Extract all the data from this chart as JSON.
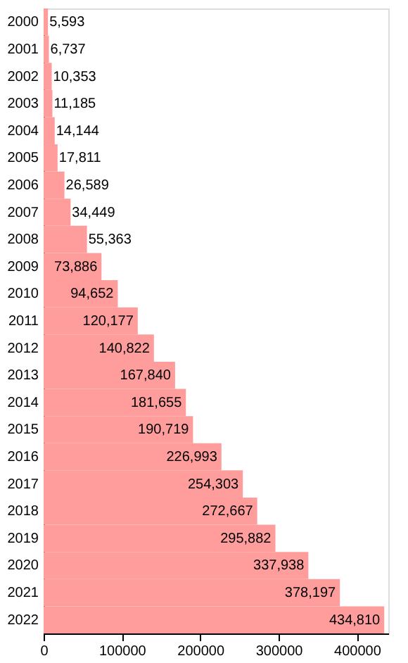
{
  "chart_data": {
    "type": "bar",
    "orientation": "horizontal",
    "categories": [
      "2000",
      "2001",
      "2002",
      "2003",
      "2004",
      "2005",
      "2006",
      "2007",
      "2008",
      "2009",
      "2010",
      "2011",
      "2012",
      "2013",
      "2014",
      "2015",
      "2016",
      "2017",
      "2018",
      "2019",
      "2020",
      "2021",
      "2022"
    ],
    "values": [
      5593,
      6737,
      10353,
      11185,
      14144,
      17811,
      26589,
      34449,
      55363,
      73886,
      94652,
      120177,
      140822,
      167840,
      181655,
      190719,
      226993,
      254303,
      272667,
      295882,
      337938,
      378197,
      434810
    ],
    "color": "#ff9d9d",
    "value_labels": [
      "5,593",
      "6,737",
      "10,353",
      "11,185",
      "14,144",
      "17,811",
      "26,589",
      "34,449",
      "55,363",
      "73,886",
      "94,652",
      "120,177",
      "140,822",
      "167,840",
      "181,655",
      "190,719",
      "226,993",
      "254,303",
      "272,667",
      "295,882",
      "337,938",
      "378,197",
      "434,810"
    ],
    "xlim": [
      0,
      440000
    ],
    "xticks": [
      0,
      100000,
      200000,
      300000,
      400000
    ],
    "grid": false,
    "legend": false
  }
}
